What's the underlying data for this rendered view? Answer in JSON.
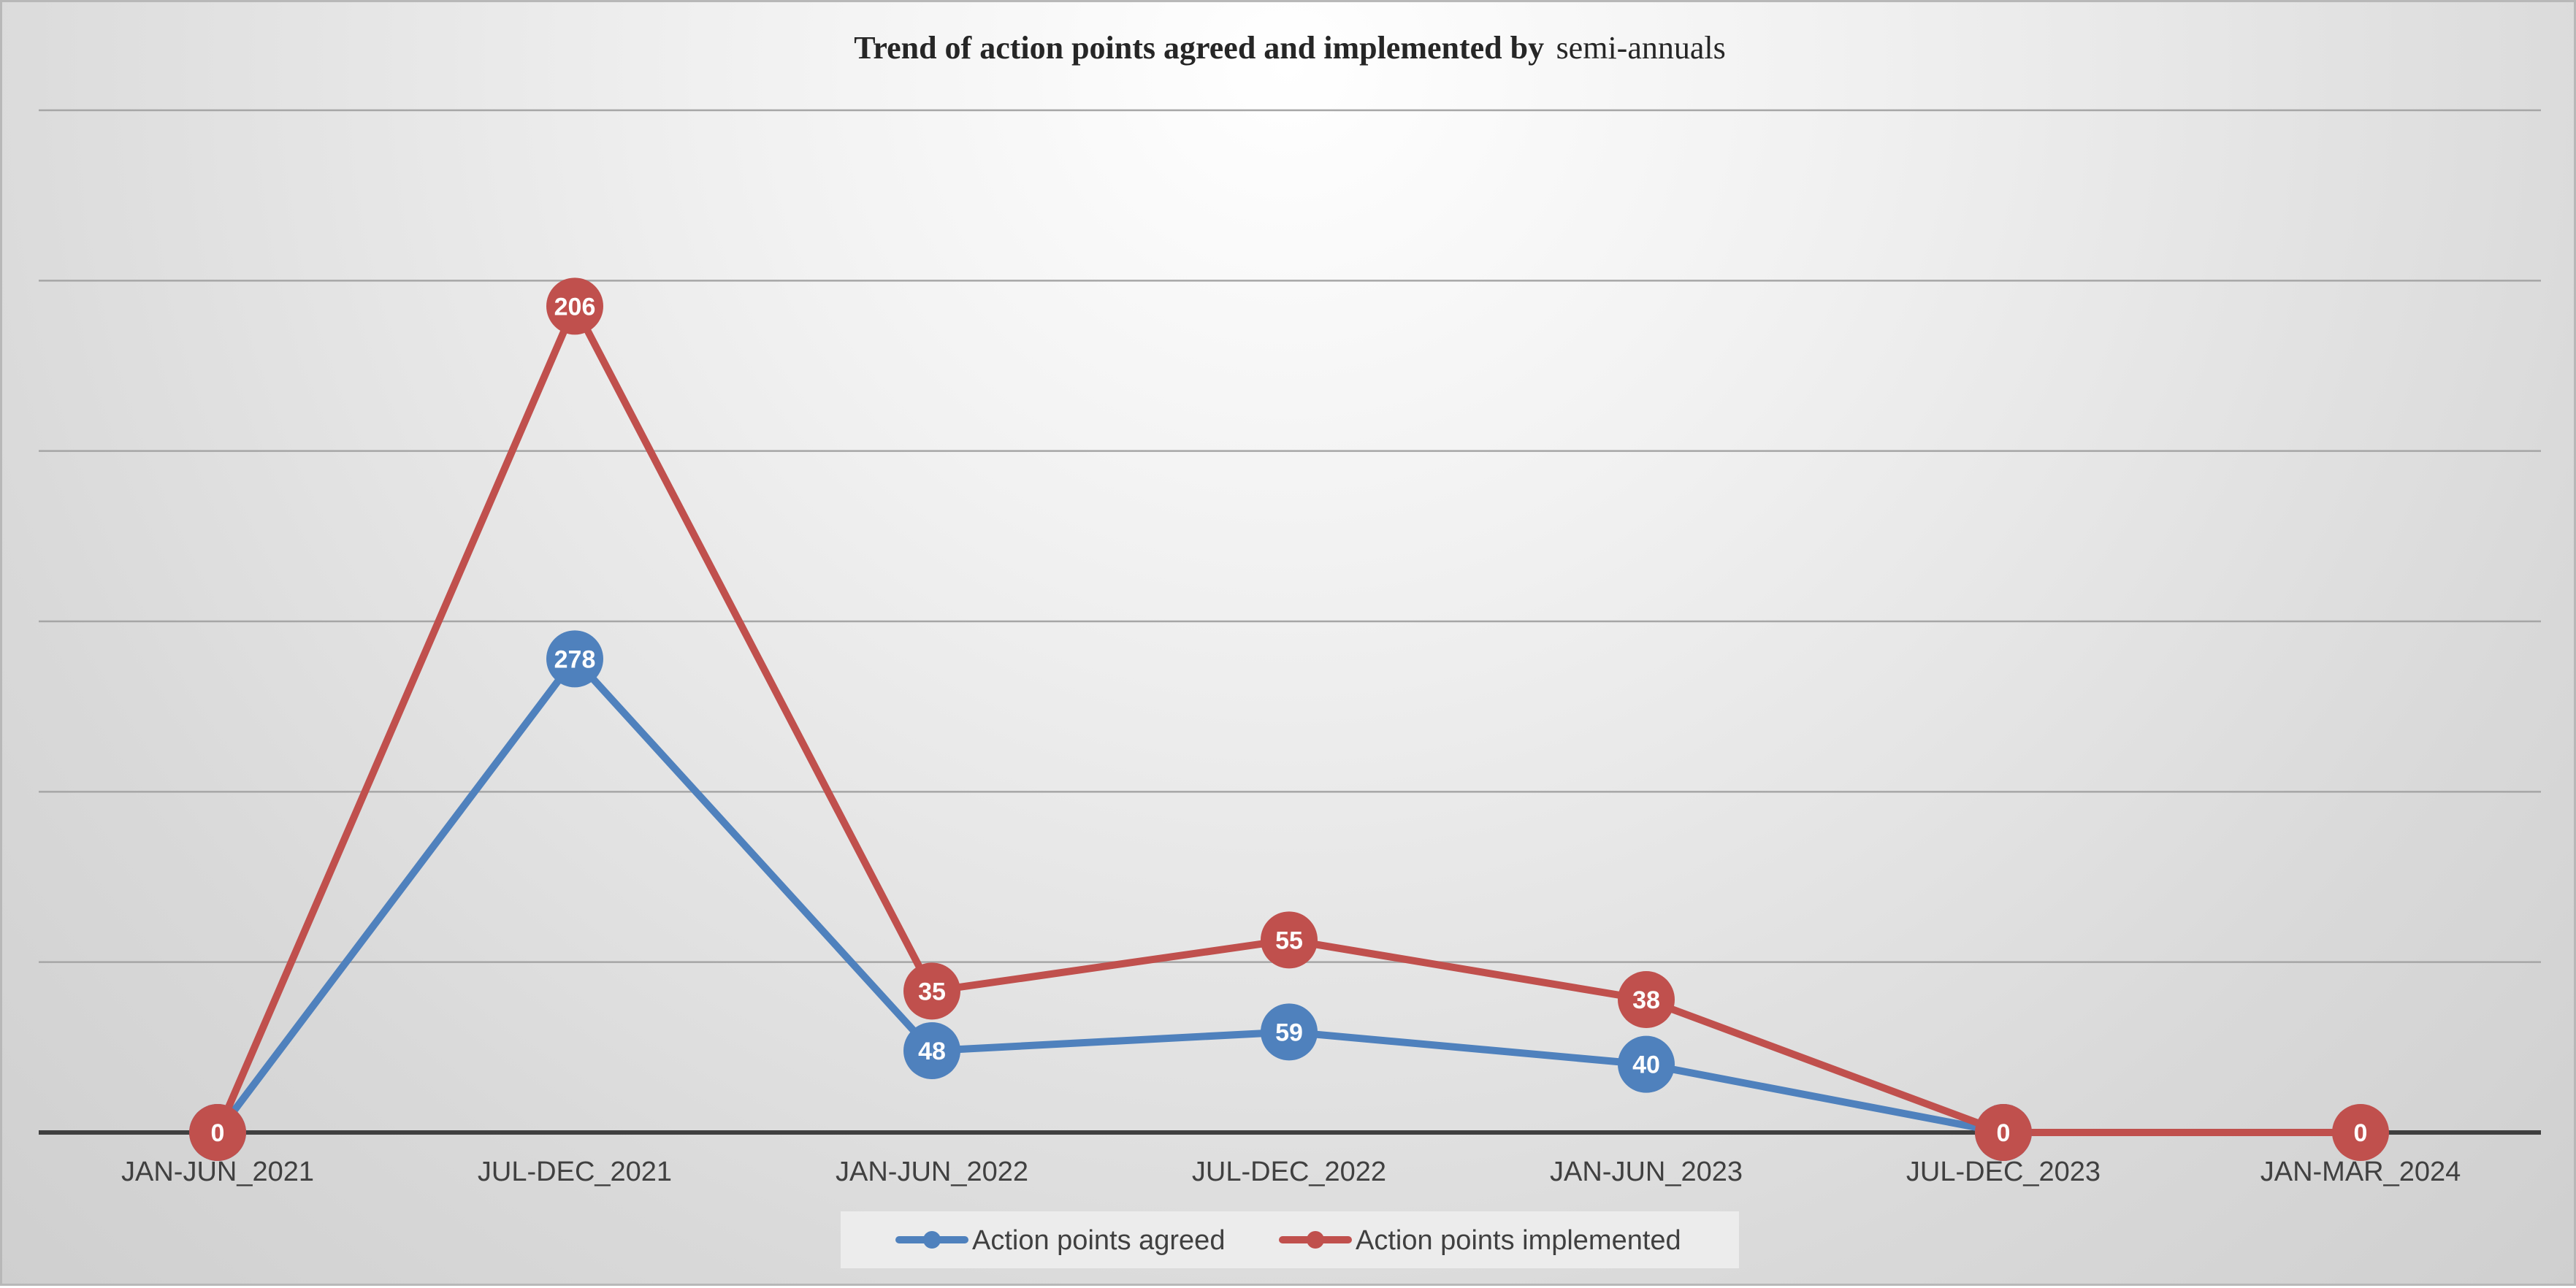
{
  "chart_data": {
    "type": "line",
    "title": "Trend of action points agreed and implemented by",
    "title_suffix": "semi-annuals",
    "categories": [
      "JAN-JUN_2021",
      "JUL-DEC_2021",
      "JAN-JUN_2022",
      "JUL-DEC_2022",
      "JAN-JUN_2023",
      "JUL-DEC_2023",
      "JAN-MAR_2024"
    ],
    "series": [
      {
        "name": "Action points agreed",
        "color": "#4f81bd",
        "display_values": [
          0,
          278,
          48,
          59,
          40,
          0,
          null
        ],
        "values": [
          0,
          278,
          48,
          59,
          40,
          0,
          null
        ]
      },
      {
        "name": "Action points implemented",
        "color": "#c0504d",
        "display_values": [
          0,
          206,
          35,
          55,
          38,
          0,
          0
        ],
        "values": [
          0,
          485,
          83,
          113,
          78,
          0,
          0
        ]
      }
    ],
    "ylim": [
      0,
      600
    ],
    "y_gridlines": [
      100,
      200,
      300,
      400,
      500,
      600
    ],
    "y_tick_labels_shown": false,
    "grid": true,
    "legend": "bottom"
  },
  "colors": {
    "gridline": "#a6a6a6",
    "axis": "#404040",
    "legend_background": "#ececec"
  }
}
